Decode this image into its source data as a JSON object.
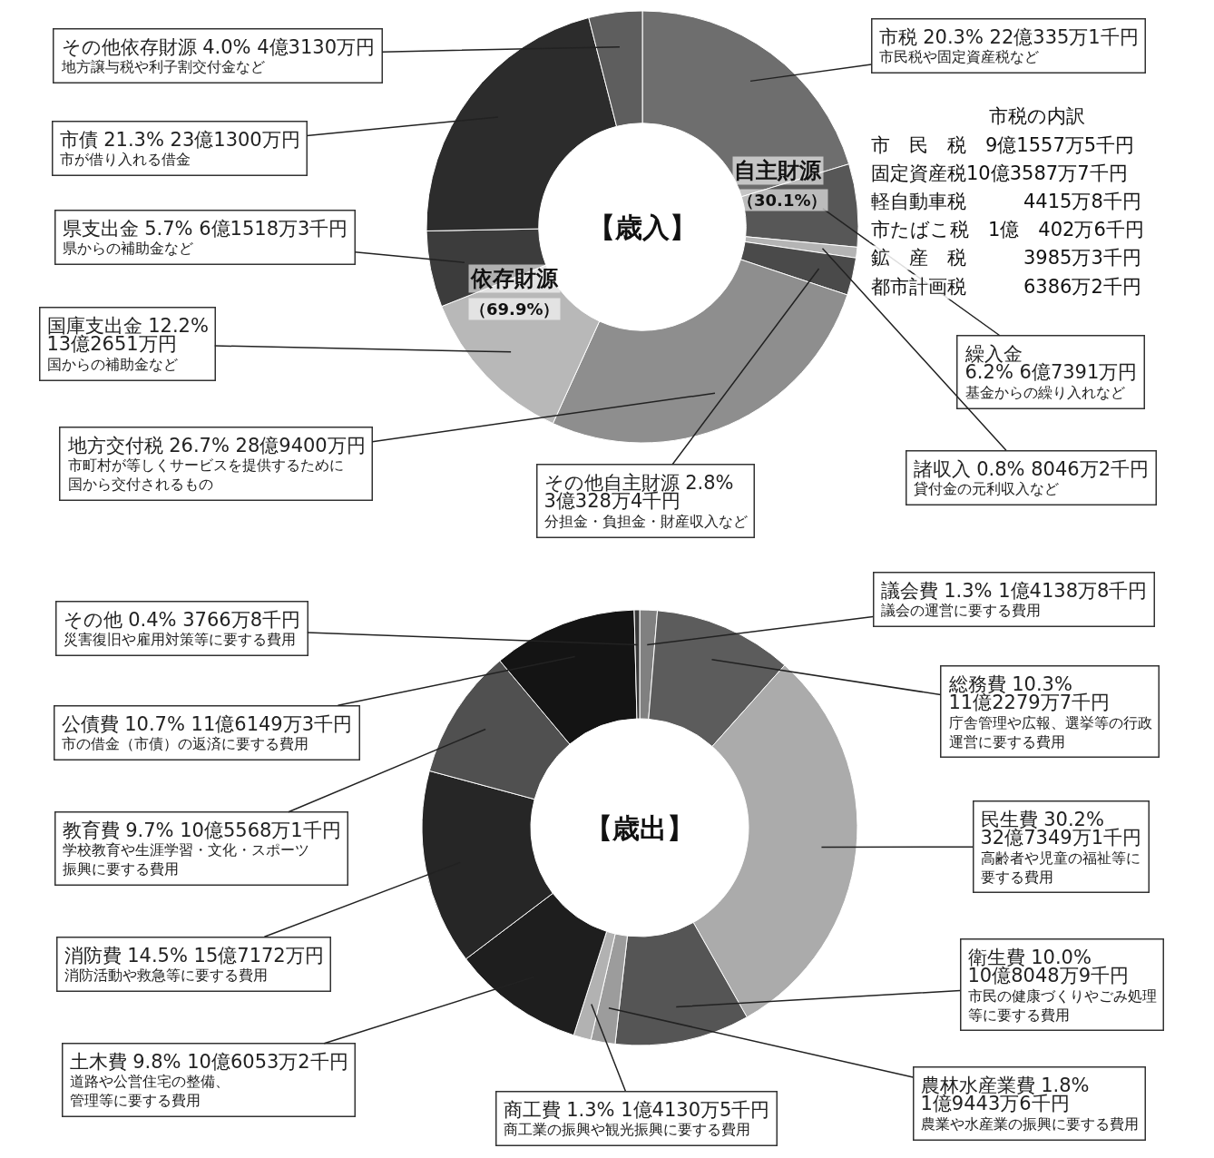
{
  "chart_data": [
    {
      "type": "donut",
      "title": "【歳入】",
      "categories": [
        "市税",
        "繰入金",
        "諸収入",
        "その他自主財源",
        "地方交付税",
        "国庫支出金",
        "県支出金",
        "市債",
        "その他依存財源"
      ],
      "values": [
        20.3,
        6.2,
        0.8,
        2.8,
        26.7,
        12.2,
        5.7,
        21.3,
        4.0
      ],
      "colors": [
        "#6e6e6e",
        "#575757",
        "#b4b4b4",
        "#4a4a4a",
        "#8e8e8e",
        "#b8b8b8",
        "#3c3c3c",
        "#2c2c2c",
        "#5e5e5e"
      ],
      "value_labels": [
        "20.3% 22億335万1千円",
        "\n6.2% 6億7391万円",
        "0.8% 8046万2千円",
        "2.8%\n3億328万4千円",
        "26.7% 28億9400万円",
        "12.2%\n13億2651万円",
        "5.7% 6億1518万3千円",
        "21.3% 23億1300万円",
        "4.0% 4億3130万円"
      ],
      "annotations": [
        "市民税や固定資産税など",
        "基金からの繰り入れなど",
        "貸付金の元利収入など",
        "分担金・負担金・財産収入など",
        "市町村が等しくサービスを提供するために国から交付されるもの",
        "国からの補助金など",
        "県からの補助金など",
        "市が借り入れる借金",
        "地方譲与税や利子割交付金など",
        "自主財源",
        "（30.1%）",
        "依存財源",
        "（69.9%）",
        "市税の内訳",
        "市　民　税　9億1557万5千円",
        "固定資産税10億3587万7千円",
        "軽自動車税　　　4415万8千円",
        "市たばこ税　1億　402万6千円",
        "鉱　産　税　　　3985万3千円",
        "都市計画税　　　6386万2千円"
      ]
    },
    {
      "type": "donut",
      "title": "【歳出】",
      "categories": [
        "議会費",
        "総務費",
        "民生費",
        "衛生費",
        "農林水産業費",
        "商工費",
        "土木費",
        "消防費",
        "教育費",
        "公債費",
        "その他"
      ],
      "values": [
        1.3,
        10.3,
        30.2,
        10.0,
        1.8,
        1.3,
        9.8,
        14.5,
        9.7,
        10.7,
        0.4
      ],
      "colors": [
        "#808080",
        "#5c5c5c",
        "#ababab",
        "#555555",
        "#9c9c9c",
        "#b2b2b2",
        "#1e1e1e",
        "#262626",
        "#505050",
        "#141414",
        "#3a3a3a"
      ],
      "value_labels": [
        "1.3% 1億4138万8千円",
        "10.3%\n11億2279万7千円",
        "30.2%\n32億7349万1千円",
        "10.0%\n10億8048万9千円",
        "1.8%\n1億9443万6千円",
        "1.3% 1億4130万5千円",
        "9.8% 10億6053万2千円",
        "14.5% 15億7172万円",
        "9.7% 10億5568万1千円",
        "10.7% 11億6149万3千円",
        "0.4% 3766万8千円"
      ],
      "annotations": [
        "議会の運営に要する費用",
        "庁舎管理や広報、選挙等の行政運営に要する費用",
        "高齢者や児童の福祉等に要する費用",
        "市民の健康づくりやごみ処理等に要する費用",
        "農業や水産業の振興に要する費用",
        "商工業の振興や観光振興に要する費用",
        "道路や公営住宅の整備、管理等に要する費用",
        "消防活動や救急等に要する費用",
        "学校教育や生涯学習・文化・スポーツ振興に要する費用",
        "市の借金（市債）の返済に要する費用",
        "災害復旧や雇用対策等に要する費用"
      ]
    }
  ]
}
